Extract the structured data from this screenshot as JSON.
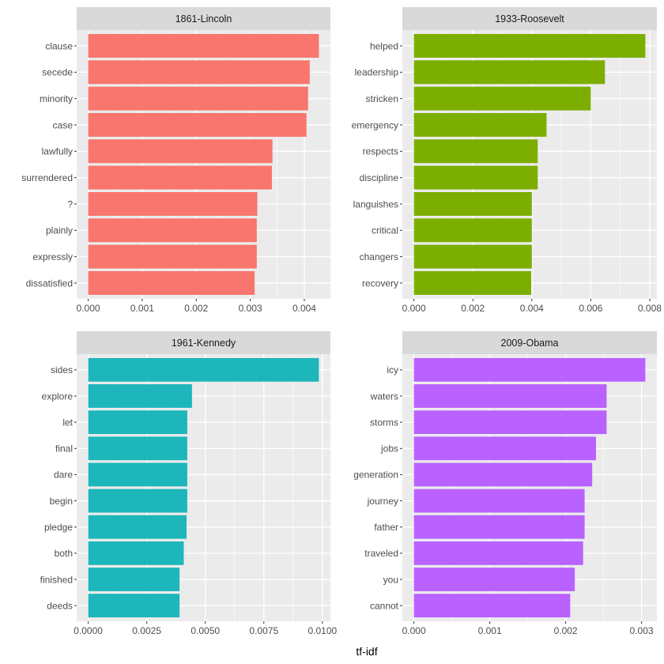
{
  "xlabel": "tf-idf",
  "chart_data": [
    {
      "type": "bar",
      "orientation": "horizontal",
      "title": "1861-Lincoln",
      "color": "#F8766D",
      "categories": [
        "clause",
        "secede",
        "minority",
        "case",
        "lawfully",
        "surrendered",
        "?",
        "plainly",
        "expressly",
        "dissatisfied"
      ],
      "values": [
        0.00427,
        0.0041,
        0.00407,
        0.00404,
        0.00341,
        0.0034,
        0.00313,
        0.00312,
        0.00312,
        0.00308
      ],
      "xlim": [
        -0.000213,
        0.004483
      ],
      "xticks": [
        0.0,
        0.001,
        0.002,
        0.003,
        0.004
      ],
      "xtick_labels": [
        "0.000",
        "0.001",
        "0.002",
        "0.003",
        "0.004"
      ],
      "grid": true
    },
    {
      "type": "bar",
      "orientation": "horizontal",
      "title": "1933-Roosevelt",
      "color": "#7CAE00",
      "categories": [
        "helped",
        "leadership",
        "stricken",
        "emergency",
        "respects",
        "discipline",
        "languishes",
        "critical",
        "changers",
        "recovery"
      ],
      "values": [
        0.00785,
        0.00648,
        0.006,
        0.0045,
        0.0042,
        0.0042,
        0.004,
        0.004,
        0.004,
        0.00398
      ],
      "xlim": [
        -0.000393,
        0.008243
      ],
      "xticks": [
        0.0,
        0.002,
        0.004,
        0.006,
        0.008
      ],
      "xtick_labels": [
        "0.000",
        "0.002",
        "0.004",
        "0.006",
        "0.008"
      ],
      "grid": true
    },
    {
      "type": "bar",
      "orientation": "horizontal",
      "title": "1961-Kennedy",
      "color": "#1DB6BA",
      "categories": [
        "sides",
        "explore",
        "let",
        "final",
        "dare",
        "begin",
        "pledge",
        "both",
        "finished",
        "deeds"
      ],
      "values": [
        0.00985,
        0.00443,
        0.00423,
        0.00423,
        0.00423,
        0.00423,
        0.0042,
        0.00408,
        0.0039,
        0.0039
      ],
      "xlim": [
        -0.000493,
        0.010343
      ],
      "xticks": [
        0.0,
        0.0025,
        0.005,
        0.0075,
        0.01
      ],
      "xtick_labels": [
        "0.0000",
        "0.0025",
        "0.0050",
        "0.0075",
        "0.0100"
      ],
      "grid": true
    },
    {
      "type": "bar",
      "orientation": "horizontal",
      "title": "2009-Obama",
      "color": "#B962FF",
      "categories": [
        "icy",
        "waters",
        "storms",
        "jobs",
        "generation",
        "journey",
        "father",
        "traveled",
        "you",
        "cannot"
      ],
      "values": [
        0.00305,
        0.00254,
        0.00254,
        0.0024,
        0.00235,
        0.00225,
        0.00225,
        0.00223,
        0.00212,
        0.00206
      ],
      "xlim": [
        -0.0001525,
        0.0032025
      ],
      "xticks": [
        0.0,
        0.001,
        0.002,
        0.003
      ],
      "xtick_labels": [
        "0.000",
        "0.001",
        "0.002",
        "0.003"
      ],
      "grid": true
    }
  ]
}
